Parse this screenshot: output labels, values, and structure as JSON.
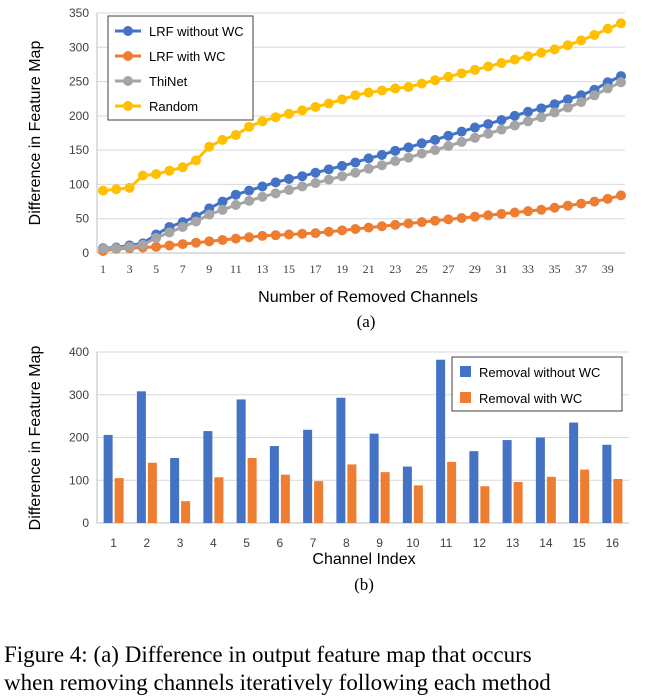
{
  "chart_data": [
    {
      "type": "line",
      "panel_label": "(a)",
      "title": "",
      "xlabel": "Number of Removed Channels",
      "ylabel": "Difference in Feature Map",
      "xlim": [
        1,
        40
      ],
      "ylim": [
        0,
        350
      ],
      "y_ticks": [
        0,
        50,
        100,
        150,
        200,
        250,
        300,
        350
      ],
      "x_ticks": [
        1,
        3,
        5,
        7,
        9,
        11,
        13,
        15,
        17,
        19,
        21,
        23,
        25,
        27,
        29,
        31,
        33,
        35,
        37,
        39
      ],
      "x": [
        1,
        2,
        3,
        4,
        5,
        6,
        7,
        8,
        9,
        10,
        11,
        12,
        13,
        14,
        15,
        16,
        17,
        18,
        19,
        20,
        21,
        22,
        23,
        24,
        25,
        26,
        27,
        28,
        29,
        30,
        31,
        32,
        33,
        34,
        35,
        36,
        37,
        38,
        39,
        40
      ],
      "legend_position": "top-left",
      "grid": "horizontal",
      "series": [
        {
          "name": "LRF without WC",
          "color": "#4472C4",
          "values": [
            7,
            8,
            11,
            14,
            27,
            38,
            45,
            53,
            65,
            75,
            85,
            91,
            97,
            103,
            108,
            112,
            117,
            122,
            127,
            132,
            138,
            143,
            149,
            154,
            160,
            165,
            171,
            177,
            183,
            188,
            194,
            200,
            206,
            211,
            217,
            224,
            230,
            238,
            249,
            258
          ]
        },
        {
          "name": "LRF with WC",
          "color": "#ED7D31",
          "values": [
            3,
            6,
            7,
            8,
            9,
            11,
            13,
            15,
            17,
            19,
            21,
            23,
            25,
            26,
            27,
            28,
            29,
            31,
            33,
            35,
            37,
            39,
            41,
            43,
            45,
            47,
            49,
            51,
            53,
            55,
            57,
            59,
            61,
            63,
            66,
            69,
            72,
            75,
            79,
            84
          ]
        },
        {
          "name": "ThiNet",
          "color": "#A5A5A5",
          "values": [
            6,
            7,
            9,
            12,
            22,
            30,
            38,
            46,
            56,
            63,
            70,
            76,
            82,
            87,
            92,
            97,
            102,
            107,
            112,
            117,
            123,
            128,
            134,
            139,
            145,
            150,
            156,
            162,
            168,
            174,
            180,
            186,
            192,
            198,
            205,
            212,
            220,
            230,
            240,
            249
          ]
        },
        {
          "name": "Random",
          "color": "#FFC000",
          "values": [
            91,
            93,
            95,
            113,
            115,
            120,
            125,
            135,
            155,
            165,
            172,
            184,
            192,
            198,
            203,
            208,
            213,
            218,
            224,
            230,
            234,
            237,
            240,
            242,
            247,
            252,
            257,
            262,
            267,
            272,
            277,
            282,
            287,
            292,
            297,
            303,
            310,
            318,
            327,
            335
          ]
        }
      ]
    },
    {
      "type": "bar",
      "panel_label": "(b)",
      "title": "",
      "xlabel": "Channel Index",
      "ylabel": "Difference in Feature Map",
      "ylim": [
        0,
        400
      ],
      "y_ticks": [
        0,
        100,
        200,
        300,
        400
      ],
      "categories": [
        "1",
        "2",
        "3",
        "4",
        "5",
        "6",
        "7",
        "8",
        "9",
        "10",
        "11",
        "12",
        "13",
        "14",
        "15",
        "16"
      ],
      "legend_position": "top-right",
      "grid": "horizontal",
      "series": [
        {
          "name": "Removal without WC",
          "color": "#4472C4",
          "values": [
            206,
            308,
            152,
            215,
            289,
            180,
            218,
            293,
            209,
            132,
            382,
            168,
            194,
            200,
            235,
            183
          ]
        },
        {
          "name": "Removal with WC",
          "color": "#ED7D31",
          "values": [
            105,
            141,
            51,
            107,
            152,
            113,
            98,
            137,
            119,
            88,
            143,
            86,
            96,
            108,
            125,
            103
          ]
        }
      ]
    }
  ],
  "caption": {
    "line1": "Figure 4: (a) Difference in output feature map that occurs",
    "line2": "when removing channels iteratively following each method"
  }
}
